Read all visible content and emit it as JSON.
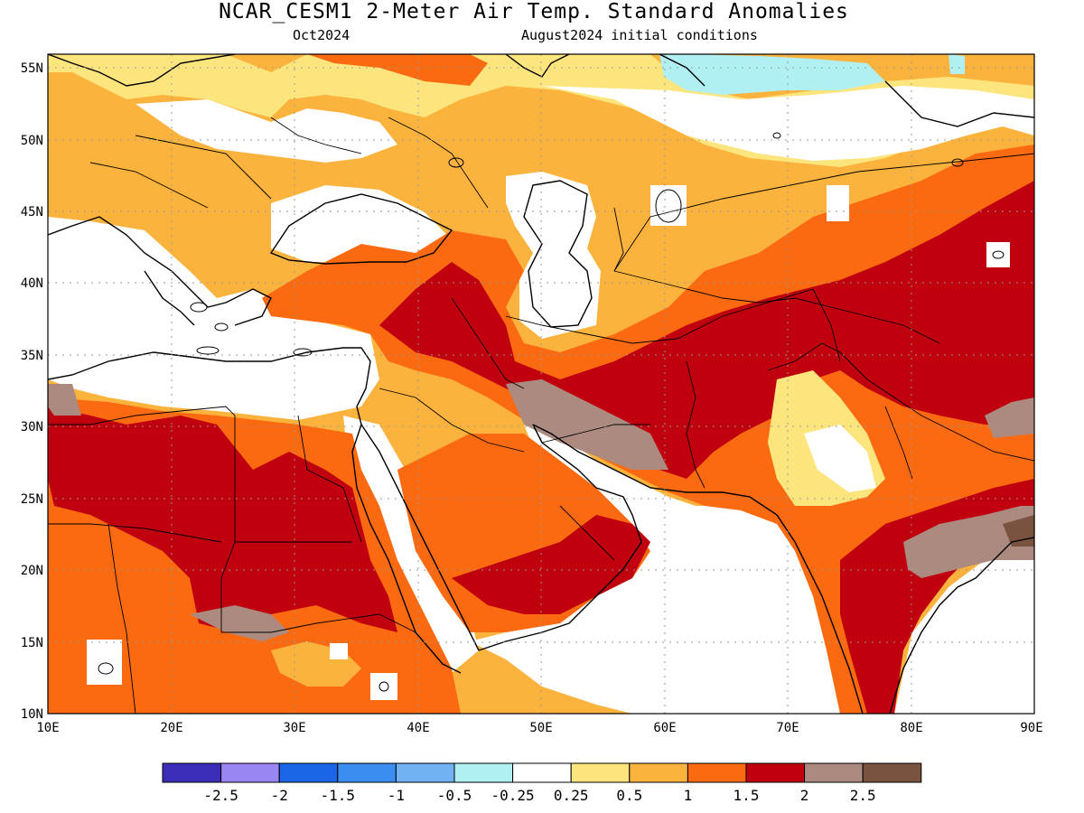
{
  "header": {
    "title": "NCAR_CESM1 2-Meter Air Temp. Standard Anomalies",
    "forecast_month": "Oct2024",
    "init_conditions": "August2024 initial conditions"
  },
  "map": {
    "lat_ticks": [
      "55N",
      "50N",
      "45N",
      "40N",
      "35N",
      "30N",
      "25N",
      "20N",
      "15N",
      "10N"
    ],
    "lon_ticks": [
      "10E",
      "20E",
      "30E",
      "40E",
      "50E",
      "60E",
      "70E",
      "80E",
      "90E"
    ],
    "lat_range": [
      10,
      56
    ],
    "lon_range": [
      10,
      90
    ]
  },
  "colorbar": {
    "colors": [
      "#3b2db8",
      "#9b85f2",
      "#1a66e6",
      "#3a8ef0",
      "#71b3f2",
      "#b0eff2",
      "#ffffff",
      "#fde57e",
      "#fbb33d",
      "#fb6a10",
      "#c0000e",
      "#ad8a80",
      "#7a5240"
    ],
    "labels": [
      "-2.5",
      "-2",
      "-1.5",
      "-1",
      "-0.5",
      "-0.25",
      "0.25",
      "0.5",
      "1",
      "1.5",
      "2",
      "2.5"
    ]
  }
}
